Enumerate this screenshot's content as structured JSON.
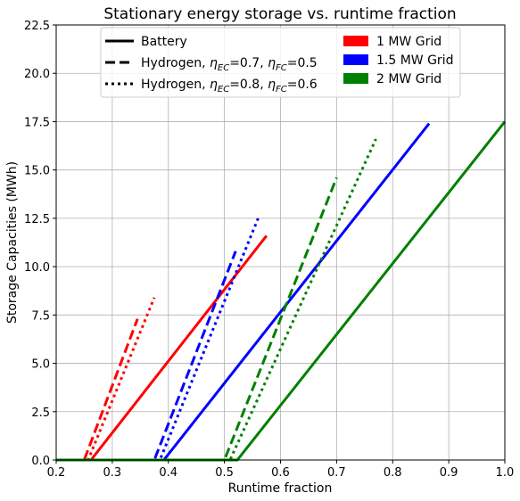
{
  "chart_data": {
    "type": "line",
    "title": "Stationary energy storage vs. runtime fraction",
    "xlabel": "Runtime fraction",
    "ylabel": "Storage Capacities (MWh)",
    "xlim": [
      0.2,
      1.0
    ],
    "ylim": [
      0.0,
      22.5
    ],
    "xticks": [
      "0.2",
      "0.3",
      "0.4",
      "0.5",
      "0.6",
      "0.7",
      "0.8",
      "0.9",
      "1.0"
    ],
    "yticks": [
      "0.0",
      "2.5",
      "5.0",
      "7.5",
      "10.0",
      "12.5",
      "15.0",
      "17.5",
      "20.0",
      "22.5"
    ],
    "grid": true,
    "legend_placement": "top",
    "legend_styles": [
      {
        "label": "Battery",
        "dash": "solid"
      },
      {
        "label_prefix": "Hydrogen, ",
        "eta_ec": "0.7",
        "eta_fc": "0.5",
        "dash": "dashed"
      },
      {
        "label_prefix": "Hydrogen, ",
        "eta_ec": "0.8",
        "eta_fc": "0.6",
        "dash": "dotted"
      }
    ],
    "legend_grids": [
      {
        "label": "1 MW Grid",
        "color": "#ff0000"
      },
      {
        "label": "1.5 MW Grid",
        "color": "#0000ff"
      },
      {
        "label": "2 MW Grid",
        "color": "#008000"
      }
    ],
    "series": [
      {
        "grid": "1 MW Grid",
        "storage": "Battery",
        "color": "#ff0000",
        "dash": "solid",
        "x": [
          0.2,
          0.262,
          0.575
        ],
        "y": [
          0.0,
          0.0,
          11.6
        ]
      },
      {
        "grid": "1 MW Grid",
        "storage": "Hydrogen η=0.7/0.5",
        "color": "#ff0000",
        "dash": "dashed",
        "x": [
          0.2,
          0.25,
          0.345
        ],
        "y": [
          0.0,
          0.0,
          7.3
        ]
      },
      {
        "grid": "1 MW Grid",
        "storage": "Hydrogen η=0.8/0.6",
        "color": "#ff0000",
        "dash": "dotted",
        "x": [
          0.2,
          0.257,
          0.375
        ],
        "y": [
          0.0,
          0.0,
          8.4
        ]
      },
      {
        "grid": "1.5 MW Grid",
        "storage": "Battery",
        "color": "#0000ff",
        "dash": "solid",
        "x": [
          0.2,
          0.392,
          0.865
        ],
        "y": [
          0.0,
          0.0,
          17.4
        ]
      },
      {
        "grid": "1.5 MW Grid",
        "storage": "Hydrogen η=0.7/0.5",
        "color": "#0000ff",
        "dash": "dashed",
        "x": [
          0.2,
          0.375,
          0.52
        ],
        "y": [
          0.0,
          0.0,
          10.8
        ]
      },
      {
        "grid": "1.5 MW Grid",
        "storage": "Hydrogen η=0.8/0.6",
        "color": "#0000ff",
        "dash": "dotted",
        "x": [
          0.2,
          0.385,
          0.56
        ],
        "y": [
          0.0,
          0.0,
          12.5
        ]
      },
      {
        "grid": "2 MW Grid",
        "storage": "Battery",
        "color": "#008000",
        "dash": "solid",
        "x": [
          0.2,
          0.523,
          1.0
        ],
        "y": [
          0.0,
          0.0,
          17.5
        ]
      },
      {
        "grid": "2 MW Grid",
        "storage": "Hydrogen η=0.7/0.5",
        "color": "#008000",
        "dash": "dashed",
        "x": [
          0.2,
          0.5,
          0.7
        ],
        "y": [
          0.0,
          0.0,
          14.6
        ]
      },
      {
        "grid": "2 MW Grid",
        "storage": "Hydrogen η=0.8/0.6",
        "color": "#008000",
        "dash": "dotted",
        "x": [
          0.2,
          0.51,
          0.77
        ],
        "y": [
          0.0,
          0.0,
          16.6
        ]
      }
    ]
  }
}
